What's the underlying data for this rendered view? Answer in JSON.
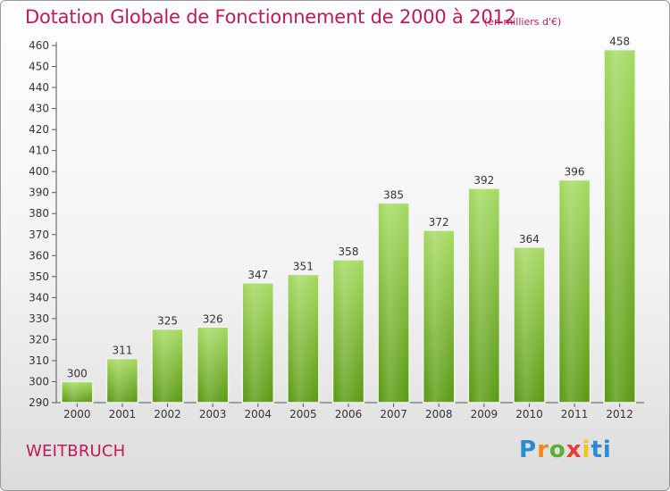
{
  "title": "Dotation Globale de Fonctionnement de 2000 à 2012",
  "unit": "(en milliers d'€)",
  "commune": "WEITBRUCH",
  "logo": {
    "text": "Proxiti"
  },
  "colors": {
    "title": "#c0195a",
    "bar_light": "#9fd45a",
    "bar_dark": "#5e9e17",
    "axis": "#444444"
  },
  "chart_data": {
    "type": "bar",
    "categories": [
      "2000",
      "2001",
      "2002",
      "2003",
      "2004",
      "2005",
      "2006",
      "2007",
      "2008",
      "2009",
      "2010",
      "2011",
      "2012"
    ],
    "values": [
      300,
      311,
      325,
      326,
      347,
      351,
      358,
      385,
      372,
      392,
      364,
      396,
      458
    ],
    "ylim": [
      290,
      460
    ],
    "yticks": [
      290,
      300,
      310,
      320,
      330,
      340,
      350,
      360,
      370,
      380,
      390,
      400,
      410,
      420,
      430,
      440,
      450,
      460
    ],
    "grid": false,
    "xlabel": "",
    "ylabel": ""
  }
}
